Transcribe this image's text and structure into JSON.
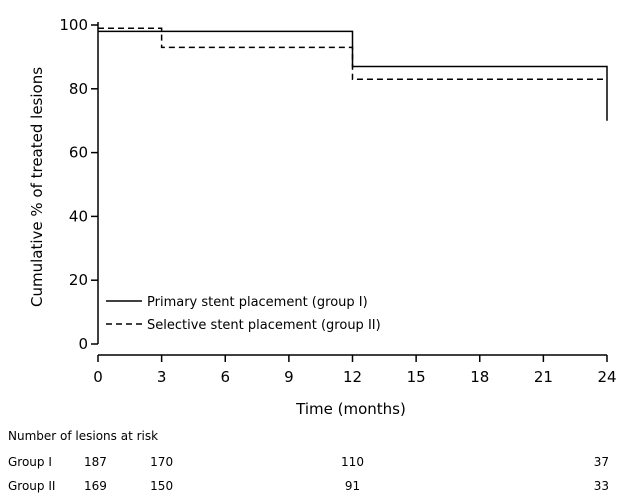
{
  "chart_data": {
    "type": "line",
    "step": true,
    "xlabel": "Time (months)",
    "ylabel": "Cumulative % of treated lesions",
    "xlim": [
      0,
      24
    ],
    "ylim": [
      0,
      100
    ],
    "x_ticks": [
      0,
      3,
      6,
      9,
      12,
      15,
      18,
      21,
      24
    ],
    "y_ticks": [
      0,
      20,
      40,
      60,
      80,
      100
    ],
    "grid": false,
    "legend_position": "bottom-left",
    "series": [
      {
        "name": "Primary stent placement (group I)",
        "line_style": "solid",
        "x": [
          0,
          3,
          12,
          24,
          24
        ],
        "y": [
          98,
          98,
          87,
          87,
          70
        ]
      },
      {
        "name": "Selective stent placement (group II)",
        "line_style": "dashed",
        "x": [
          0,
          3,
          12,
          24
        ],
        "y": [
          99,
          93,
          83,
          83
        ]
      }
    ],
    "risk_table": {
      "title": "Number of lesions at risk",
      "rows": [
        {
          "label": "Group I",
          "values": [
            {
              "x": 0,
              "value": "187"
            },
            {
              "x": 3,
              "value": "170"
            },
            {
              "x": 12,
              "value": "110"
            },
            {
              "x": 24,
              "value": "37"
            }
          ]
        },
        {
          "label": "Group II",
          "values": [
            {
              "x": 0,
              "value": "169"
            },
            {
              "x": 3,
              "value": "150"
            },
            {
              "x": 12,
              "value": "91"
            },
            {
              "x": 24,
              "value": "33"
            }
          ]
        }
      ]
    }
  }
}
